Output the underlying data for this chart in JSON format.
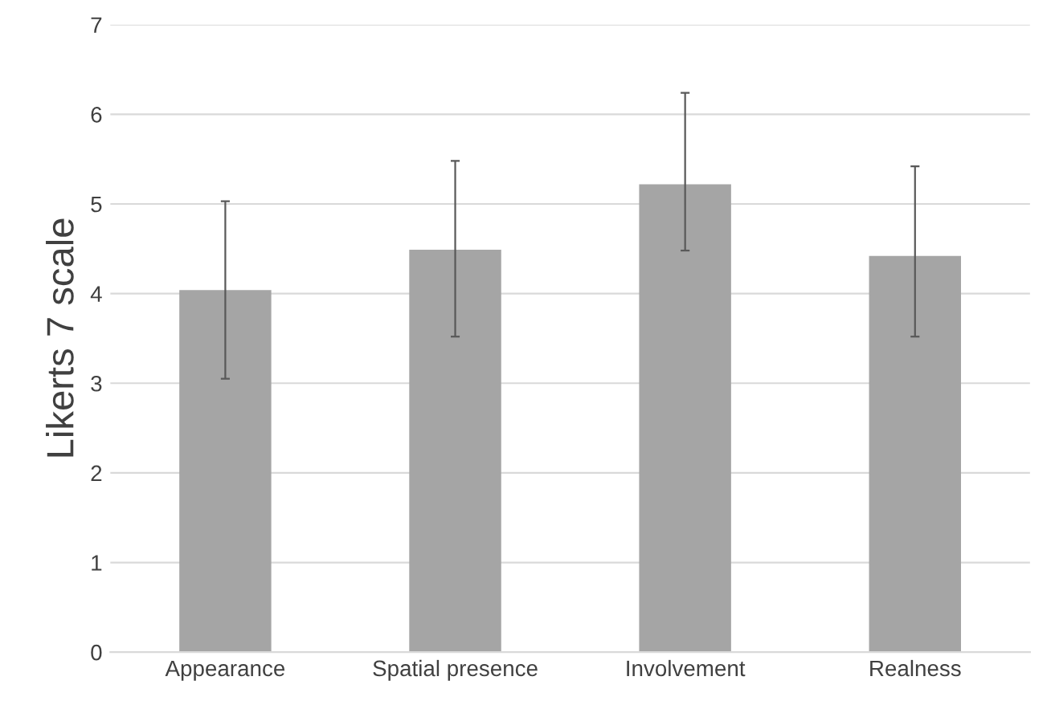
{
  "chart_data": {
    "type": "bar",
    "ylabel": "Likerts 7 scale",
    "categories": [
      "Appearance",
      "Spatial presence",
      "Involvement",
      "Realness"
    ],
    "values": [
      4.04,
      4.49,
      5.22,
      4.42
    ],
    "errors": [
      [
        3.05,
        5.03
      ],
      [
        3.52,
        5.48
      ],
      [
        4.48,
        6.24
      ],
      [
        3.52,
        5.42
      ]
    ],
    "color": "#a5a5a5",
    "ylim": [
      0,
      7
    ],
    "yticks": [
      0,
      1,
      2,
      3,
      4,
      5,
      6,
      7
    ],
    "grid": "y"
  }
}
